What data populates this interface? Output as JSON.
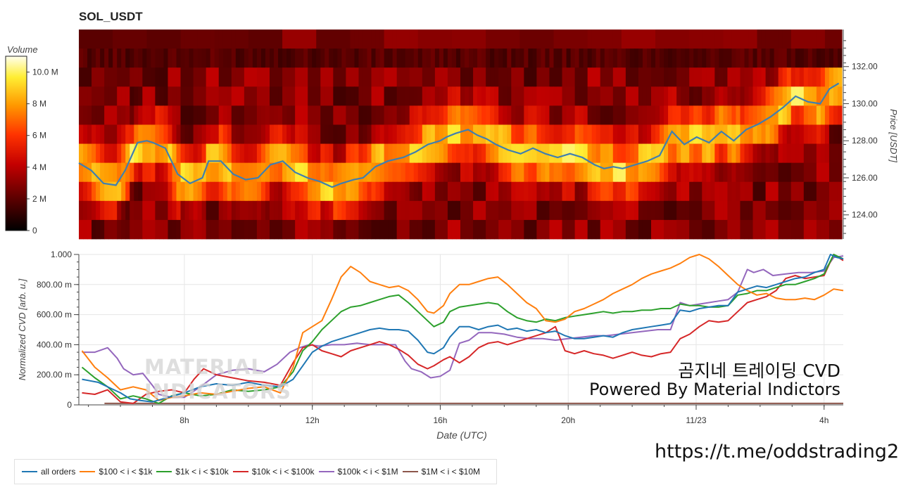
{
  "title": "SOL_USDT",
  "chart_data": [
    {
      "type": "heatmap",
      "title": "SOL_USDT",
      "colorbar": {
        "label": "Volume",
        "ticks": [
          "0",
          "2 M",
          "4 M",
          "6 M",
          "8 M",
          "10.0 M"
        ],
        "range": [
          0,
          11000000
        ]
      },
      "ylabel": "Price [USDT]",
      "y_ticks": [
        "124.00",
        "126.00",
        "128.00",
        "130.00",
        "132.00"
      ],
      "ylim": [
        122.7,
        134.0
      ],
      "price_line_color": "#3f7fb0",
      "price_line": {
        "t": [
          4.1,
          4.5,
          4.9,
          5.3,
          5.6,
          6.0,
          6.3,
          6.5,
          6.9,
          7.3,
          7.7,
          8.1,
          8.3,
          8.7,
          9.1,
          9.5,
          9.9,
          10.3,
          10.7,
          11.1,
          11.5,
          11.9,
          12.3,
          12.6,
          13.0,
          13.3,
          13.7,
          14.1,
          14.6,
          15.0,
          15.4,
          15.8,
          16.0,
          16.3,
          16.7,
          17.0,
          17.3,
          17.6,
          18.0,
          18.4,
          18.8,
          19.2,
          19.6,
          20.0,
          20.4,
          20.8,
          21.1,
          21.4,
          21.7,
          22.1,
          22.5,
          22.9,
          23.3,
          23.7,
          24.1,
          24.5,
          24.9,
          25.3,
          25.7,
          26.1,
          26.5,
          26.9,
          27.3,
          27.7,
          28.1,
          28.4,
          28.7
        ],
        "price": [
          126.8,
          126.4,
          125.7,
          125.6,
          126.4,
          127.9,
          128.0,
          127.9,
          127.6,
          126.2,
          125.7,
          126.0,
          126.9,
          126.9,
          126.2,
          125.9,
          126.0,
          126.7,
          126.9,
          126.3,
          126.0,
          125.8,
          125.5,
          125.7,
          125.9,
          126.0,
          126.6,
          126.9,
          127.1,
          127.4,
          127.8,
          128.0,
          128.2,
          128.4,
          128.6,
          128.3,
          128.1,
          127.8,
          127.5,
          127.3,
          127.6,
          127.3,
          127.1,
          127.3,
          127.1,
          126.7,
          126.5,
          126.6,
          126.5,
          126.7,
          126.9,
          127.2,
          128.5,
          127.8,
          128.2,
          127.9,
          128.5,
          128.0,
          128.6,
          128.9,
          129.3,
          129.8,
          130.4,
          130.1,
          130.0,
          130.8,
          131.1
        ]
      }
    },
    {
      "type": "line",
      "xlabel": "Date (UTC)",
      "ylabel": "Normalized CVD [arb. u.]",
      "y_ticks": [
        "0",
        "200.00 m",
        "400.00 m",
        "600.00 m",
        "800.00 m",
        "1.000"
      ],
      "ylim": [
        0,
        1.0
      ],
      "x_ticks": [
        "8h",
        "12h",
        "16h",
        "20h",
        "11/23",
        "4h"
      ],
      "x_range_hours_utc": [
        4.7,
        28.6
      ],
      "legend_position": "bottom",
      "series": [
        {
          "name": "all orders",
          "color": "#1f77b4",
          "t": [
            4.8,
            5.3,
            5.7,
            6.0,
            6.3,
            6.6,
            7.0,
            7.5,
            8.0,
            8.5,
            9.0,
            9.5,
            10.0,
            10.5,
            11.0,
            11.4,
            11.7,
            12.0,
            12.3,
            12.6,
            12.9,
            13.2,
            13.5,
            13.8,
            14.1,
            14.4,
            14.7,
            15.0,
            15.3,
            15.6,
            15.8,
            16.1,
            16.3,
            16.6,
            16.9,
            17.2,
            17.5,
            17.8,
            18.1,
            18.4,
            18.7,
            19.0,
            19.3,
            19.6,
            19.9,
            20.2,
            20.5,
            20.8,
            21.1,
            21.4,
            21.7,
            22.0,
            22.3,
            22.6,
            22.9,
            23.2,
            23.5,
            23.8,
            24.1,
            24.4,
            24.7,
            25.0,
            25.3,
            25.6,
            25.9,
            26.2,
            26.5,
            26.8,
            27.1,
            27.4,
            27.7,
            28.0,
            28.2,
            28.4,
            28.6
          ],
          "values": [
            0.17,
            0.15,
            0.11,
            0.08,
            0.04,
            0.03,
            0.02,
            0.05,
            0.08,
            0.12,
            0.14,
            0.13,
            0.15,
            0.13,
            0.12,
            0.17,
            0.26,
            0.35,
            0.39,
            0.42,
            0.44,
            0.46,
            0.48,
            0.5,
            0.51,
            0.5,
            0.5,
            0.49,
            0.43,
            0.35,
            0.34,
            0.38,
            0.45,
            0.52,
            0.52,
            0.5,
            0.52,
            0.53,
            0.5,
            0.51,
            0.49,
            0.5,
            0.48,
            0.49,
            0.46,
            0.44,
            0.44,
            0.45,
            0.46,
            0.45,
            0.48,
            0.5,
            0.51,
            0.52,
            0.53,
            0.54,
            0.63,
            0.62,
            0.64,
            0.65,
            0.66,
            0.66,
            0.75,
            0.77,
            0.79,
            0.78,
            0.8,
            0.82,
            0.84,
            0.85,
            0.88,
            0.9,
            1.0,
            0.98,
            0.97
          ]
        },
        {
          "name": "$100 < i < $1k",
          "color": "#ff7f0e",
          "t": [
            4.8,
            5.2,
            5.6,
            6.0,
            6.4,
            6.8,
            7.2,
            7.6,
            8.0,
            8.5,
            9.0,
            9.5,
            10.0,
            10.5,
            11.0,
            11.4,
            11.7,
            12.0,
            12.3,
            12.6,
            12.9,
            13.2,
            13.5,
            13.8,
            14.1,
            14.4,
            14.7,
            15.0,
            15.3,
            15.6,
            15.8,
            16.1,
            16.3,
            16.6,
            16.9,
            17.2,
            17.5,
            17.8,
            18.1,
            18.4,
            18.7,
            19.0,
            19.3,
            19.6,
            19.9,
            20.2,
            20.5,
            20.8,
            21.1,
            21.4,
            21.7,
            22.0,
            22.3,
            22.6,
            22.9,
            23.2,
            23.5,
            23.8,
            24.1,
            24.4,
            24.7,
            25.0,
            25.3,
            25.6,
            25.9,
            26.2,
            26.5,
            26.8,
            27.1,
            27.4,
            27.7,
            28.0,
            28.3,
            28.6
          ],
          "values": [
            0.36,
            0.25,
            0.18,
            0.1,
            0.12,
            0.1,
            0.03,
            0.05,
            0.06,
            0.08,
            0.07,
            0.09,
            0.11,
            0.12,
            0.08,
            0.25,
            0.48,
            0.52,
            0.56,
            0.7,
            0.85,
            0.92,
            0.88,
            0.82,
            0.8,
            0.78,
            0.79,
            0.76,
            0.7,
            0.62,
            0.61,
            0.66,
            0.74,
            0.8,
            0.8,
            0.82,
            0.84,
            0.85,
            0.8,
            0.74,
            0.68,
            0.64,
            0.56,
            0.55,
            0.57,
            0.62,
            0.64,
            0.67,
            0.7,
            0.74,
            0.77,
            0.8,
            0.84,
            0.87,
            0.89,
            0.91,
            0.94,
            0.98,
            1.0,
            0.97,
            0.92,
            0.86,
            0.8,
            0.76,
            0.73,
            0.74,
            0.71,
            0.7,
            0.7,
            0.71,
            0.7,
            0.73,
            0.77,
            0.76
          ]
        },
        {
          "name": "$1k < i < $10k",
          "color": "#2ca02c",
          "t": [
            4.8,
            5.2,
            5.6,
            6.0,
            6.4,
            6.8,
            7.2,
            7.6,
            8.0,
            8.5,
            9.0,
            9.5,
            10.0,
            10.5,
            11.0,
            11.4,
            11.7,
            12.0,
            12.3,
            12.6,
            12.9,
            13.2,
            13.5,
            13.8,
            14.1,
            14.4,
            14.7,
            15.0,
            15.3,
            15.6,
            15.8,
            16.1,
            16.3,
            16.6,
            16.9,
            17.2,
            17.5,
            17.8,
            18.1,
            18.4,
            18.7,
            19.0,
            19.3,
            19.6,
            19.9,
            20.2,
            20.5,
            20.8,
            21.1,
            21.4,
            21.7,
            22.0,
            22.3,
            22.6,
            22.9,
            23.2,
            23.5,
            23.8,
            24.1,
            24.4,
            24.7,
            25.0,
            25.3,
            25.6,
            25.9,
            26.2,
            26.5,
            26.8,
            27.1,
            27.4,
            27.7,
            28.0,
            28.3,
            28.6
          ],
          "values": [
            0.25,
            0.18,
            0.12,
            0.04,
            0.06,
            0.04,
            0.01,
            0.06,
            0.08,
            0.06,
            0.07,
            0.1,
            0.09,
            0.1,
            0.12,
            0.22,
            0.36,
            0.42,
            0.5,
            0.56,
            0.62,
            0.65,
            0.66,
            0.68,
            0.7,
            0.72,
            0.73,
            0.68,
            0.62,
            0.56,
            0.52,
            0.55,
            0.62,
            0.65,
            0.66,
            0.67,
            0.68,
            0.67,
            0.62,
            0.58,
            0.56,
            0.55,
            0.57,
            0.56,
            0.58,
            0.59,
            0.6,
            0.61,
            0.62,
            0.61,
            0.62,
            0.62,
            0.63,
            0.63,
            0.64,
            0.64,
            0.67,
            0.66,
            0.66,
            0.65,
            0.65,
            0.66,
            0.73,
            0.74,
            0.76,
            0.76,
            0.78,
            0.8,
            0.8,
            0.82,
            0.84,
            0.87,
            1.0,
            0.97
          ]
        },
        {
          "name": "$10k < i < $100k",
          "color": "#d62728",
          "t": [
            4.8,
            5.2,
            5.6,
            6.0,
            6.4,
            6.8,
            7.2,
            7.6,
            8.0,
            8.3,
            8.6,
            9.0,
            9.5,
            10.0,
            10.5,
            11.0,
            11.4,
            11.7,
            12.0,
            12.3,
            12.6,
            12.9,
            13.2,
            13.5,
            13.8,
            14.1,
            14.4,
            14.7,
            15.0,
            15.3,
            15.6,
            15.8,
            16.1,
            16.3,
            16.6,
            16.9,
            17.2,
            17.5,
            17.8,
            18.1,
            18.4,
            18.7,
            19.0,
            19.3,
            19.6,
            19.9,
            20.2,
            20.5,
            20.8,
            21.1,
            21.4,
            21.7,
            22.0,
            22.3,
            22.6,
            22.9,
            23.2,
            23.5,
            23.8,
            24.1,
            24.4,
            24.7,
            25.0,
            25.3,
            25.6,
            25.9,
            26.2,
            26.5,
            26.8,
            27.1,
            27.4,
            27.7,
            28.0,
            28.3,
            28.6
          ],
          "values": [
            0.08,
            0.07,
            0.1,
            0.02,
            0.01,
            0.07,
            0.09,
            0.1,
            0.08,
            0.17,
            0.24,
            0.2,
            0.18,
            0.16,
            0.15,
            0.13,
            0.28,
            0.38,
            0.4,
            0.36,
            0.34,
            0.32,
            0.36,
            0.38,
            0.4,
            0.42,
            0.4,
            0.37,
            0.33,
            0.27,
            0.24,
            0.26,
            0.3,
            0.32,
            0.28,
            0.32,
            0.38,
            0.41,
            0.42,
            0.4,
            0.42,
            0.44,
            0.46,
            0.48,
            0.52,
            0.36,
            0.34,
            0.36,
            0.34,
            0.33,
            0.31,
            0.33,
            0.35,
            0.33,
            0.32,
            0.34,
            0.35,
            0.44,
            0.47,
            0.52,
            0.56,
            0.55,
            0.56,
            0.62,
            0.68,
            0.7,
            0.72,
            0.76,
            0.84,
            0.86,
            0.84,
            0.85,
            0.86,
            1.0,
            0.96
          ]
        },
        {
          "name": "$100k < i < $1M",
          "color": "#9467bd",
          "t": [
            4.8,
            5.2,
            5.6,
            5.9,
            6.1,
            6.4,
            6.7,
            7.0,
            7.2,
            7.6,
            8.0,
            8.5,
            9.0,
            9.5,
            10.0,
            10.5,
            10.9,
            11.3,
            11.6,
            11.9,
            12.2,
            12.6,
            13.0,
            13.4,
            13.8,
            14.2,
            14.6,
            14.9,
            15.1,
            15.4,
            15.7,
            16.0,
            16.3,
            16.6,
            16.9,
            17.2,
            17.6,
            18.0,
            18.4,
            18.8,
            19.2,
            19.6,
            20.0,
            20.4,
            20.8,
            21.2,
            21.6,
            22.0,
            22.4,
            22.8,
            23.2,
            23.5,
            23.8,
            24.1,
            24.4,
            24.7,
            25.0,
            25.3,
            25.6,
            25.8,
            26.1,
            26.4,
            26.8,
            27.2,
            27.6,
            28.0,
            28.3,
            28.6
          ],
          "values": [
            0.35,
            0.35,
            0.38,
            0.31,
            0.24,
            0.2,
            0.21,
            0.13,
            0.07,
            0.05,
            0.05,
            0.12,
            0.2,
            0.23,
            0.24,
            0.22,
            0.27,
            0.35,
            0.38,
            0.4,
            0.39,
            0.4,
            0.4,
            0.41,
            0.4,
            0.4,
            0.4,
            0.29,
            0.24,
            0.22,
            0.18,
            0.19,
            0.23,
            0.41,
            0.43,
            0.48,
            0.48,
            0.47,
            0.45,
            0.44,
            0.44,
            0.43,
            0.44,
            0.45,
            0.46,
            0.46,
            0.47,
            0.48,
            0.49,
            0.5,
            0.5,
            0.68,
            0.66,
            0.67,
            0.68,
            0.69,
            0.7,
            0.75,
            0.9,
            0.88,
            0.9,
            0.86,
            0.87,
            0.88,
            0.88,
            0.89,
            0.98,
            0.99
          ]
        },
        {
          "name": "$1M < i < $10M",
          "color": "#8c564b",
          "t": [
            5.5,
            5.8,
            6.2,
            6.6,
            7.0,
            7.5,
            8.0,
            8.5,
            9.0,
            9.5,
            10.0,
            10.5,
            11.0,
            11.5,
            12.0,
            12.5,
            13.0,
            13.5,
            14.0,
            14.5,
            15.0,
            15.5,
            16.0,
            16.5,
            17.0,
            17.5,
            18.0,
            18.5,
            19.0,
            19.5,
            20.0,
            20.5,
            21.0,
            21.5,
            22.0,
            22.5,
            23.0,
            23.5,
            24.0,
            24.5,
            25.0,
            25.5,
            26.0,
            26.5,
            27.0,
            27.5,
            28.0,
            28.3,
            28.6
          ],
          "values": [
            0.01,
            0.01,
            0.01,
            0.01,
            0.01,
            0.01,
            0.01,
            0.01,
            0.01,
            0.01,
            0.01,
            0.01,
            0.01,
            0.01,
            0.01,
            0.01,
            0.01,
            0.01,
            0.01,
            0.01,
            0.01,
            0.01,
            0.01,
            0.01,
            0.01,
            0.01,
            0.01,
            0.01,
            0.01,
            0.01,
            0.01,
            0.01,
            0.01,
            0.01,
            0.01,
            0.01,
            0.01,
            0.01,
            0.01,
            0.01,
            0.01,
            0.01,
            0.01,
            0.01,
            0.01,
            0.01,
            0.01,
            0.01,
            0.01
          ]
        }
      ]
    }
  ],
  "watermark": {
    "line1": "곰지네 트레이딩 CVD",
    "line2": "Powered By Material Indictors",
    "brand1": "MATERIAL",
    "brand2": "INDICATORS"
  },
  "link": "https://t.me/oddstrading2"
}
